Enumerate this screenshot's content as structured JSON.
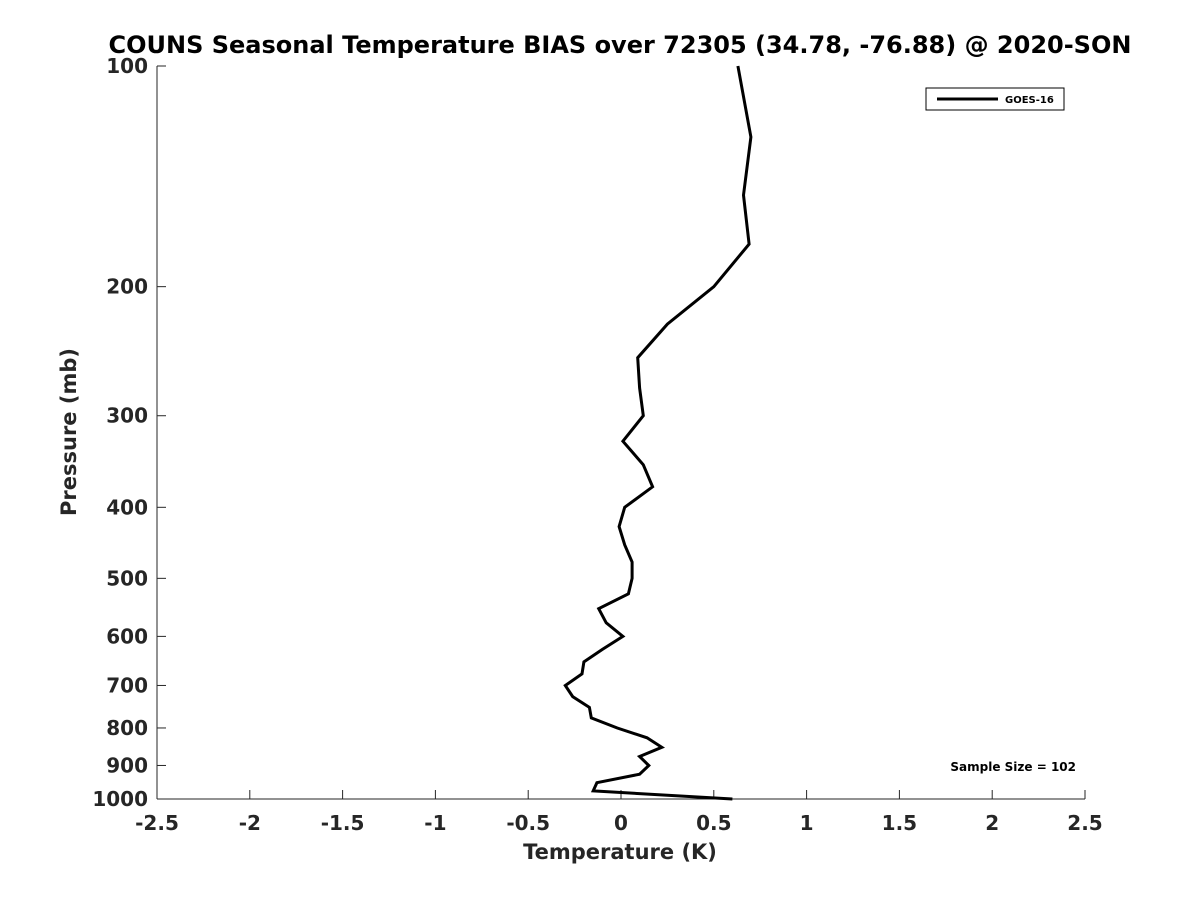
{
  "chart_data": {
    "type": "line",
    "title": "COUNS Seasonal Temperature BIAS over 72305 (34.78, -76.88) @ 2020-SON",
    "xlabel": "Temperature (K)",
    "ylabel": "Pressure (mb)",
    "xlim": [
      -2.5,
      2.5
    ],
    "ylim": [
      100,
      1000
    ],
    "y_scale": "log",
    "y_reversed": true,
    "x_ticks": [
      -2.5,
      -2,
      -1.5,
      -1,
      -0.5,
      0,
      0.5,
      1,
      1.5,
      2,
      2.5
    ],
    "x_tick_labels": [
      "-2.5",
      "-2",
      "-1.5",
      "-1",
      "-0.5",
      "0",
      "0.5",
      "1",
      "1.5",
      "2",
      "2.5"
    ],
    "y_ticks": [
      100,
      200,
      300,
      400,
      500,
      600,
      700,
      800,
      900,
      1000
    ],
    "y_tick_labels": [
      "100",
      "200",
      "300",
      "400",
      "500",
      "600",
      "700",
      "800",
      "900",
      "1000"
    ],
    "grid": false,
    "legend": {
      "placement": "top-right",
      "entries": [
        "GOES-16"
      ]
    },
    "annotation": "Sample Size = 102",
    "series": [
      {
        "name": "GOES-16",
        "color": "#000000",
        "points": [
          {
            "x": 0.63,
            "y": 100
          },
          {
            "x": 0.7,
            "y": 125
          },
          {
            "x": 0.66,
            "y": 150
          },
          {
            "x": 0.69,
            "y": 175
          },
          {
            "x": 0.5,
            "y": 200
          },
          {
            "x": 0.25,
            "y": 225
          },
          {
            "x": 0.09,
            "y": 250
          },
          {
            "x": 0.1,
            "y": 275
          },
          {
            "x": 0.12,
            "y": 300
          },
          {
            "x": 0.01,
            "y": 325
          },
          {
            "x": 0.12,
            "y": 350
          },
          {
            "x": 0.17,
            "y": 375
          },
          {
            "x": 0.02,
            "y": 400
          },
          {
            "x": -0.01,
            "y": 425
          },
          {
            "x": 0.02,
            "y": 450
          },
          {
            "x": 0.06,
            "y": 475
          },
          {
            "x": 0.06,
            "y": 500
          },
          {
            "x": 0.04,
            "y": 525
          },
          {
            "x": -0.12,
            "y": 550
          },
          {
            "x": -0.08,
            "y": 575
          },
          {
            "x": 0.01,
            "y": 600
          },
          {
            "x": -0.1,
            "y": 625
          },
          {
            "x": -0.2,
            "y": 650
          },
          {
            "x": -0.21,
            "y": 675
          },
          {
            "x": -0.3,
            "y": 700
          },
          {
            "x": -0.26,
            "y": 725
          },
          {
            "x": -0.17,
            "y": 750
          },
          {
            "x": -0.16,
            "y": 775
          },
          {
            "x": -0.02,
            "y": 800
          },
          {
            "x": 0.14,
            "y": 825
          },
          {
            "x": 0.22,
            "y": 850
          },
          {
            "x": 0.1,
            "y": 875
          },
          {
            "x": 0.15,
            "y": 900
          },
          {
            "x": 0.1,
            "y": 925
          },
          {
            "x": -0.13,
            "y": 950
          },
          {
            "x": -0.15,
            "y": 975
          },
          {
            "x": 0.6,
            "y": 1000
          }
        ]
      }
    ]
  }
}
